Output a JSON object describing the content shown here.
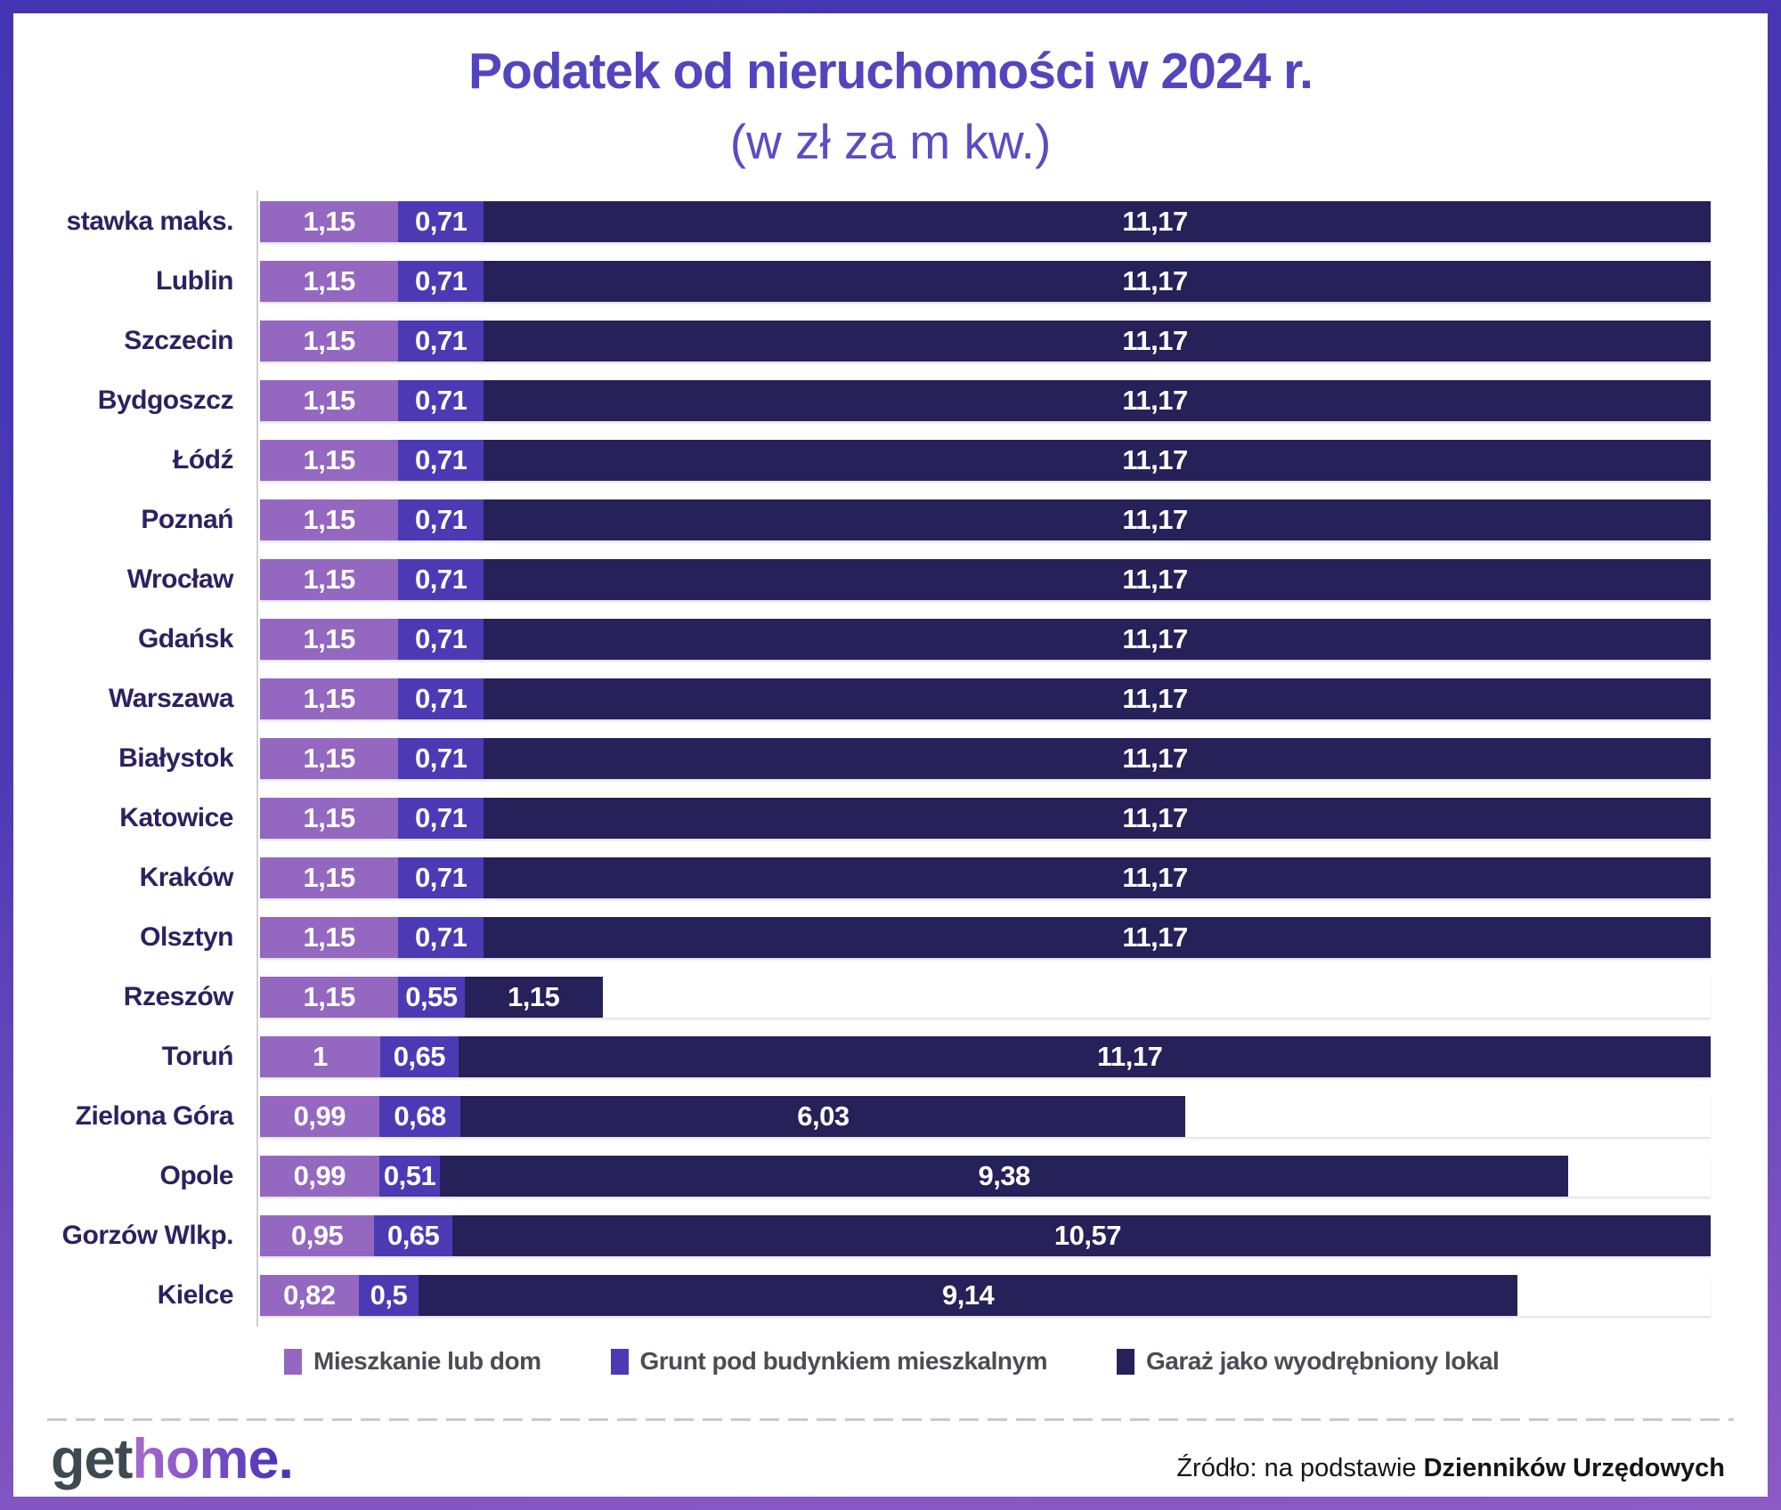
{
  "title": "Podatek od nieruchomości w 2024 r.",
  "subtitle": "(w zł za m kw.)",
  "chart_data": {
    "type": "bar",
    "orientation": "horizontal",
    "stacked": true,
    "unit": "zł za m kw.",
    "categories": [
      "stawka maks.",
      "Lublin",
      "Szczecin",
      "Bydgoszcz",
      "Łódź",
      "Poznań",
      "Wrocław",
      "Gdańsk",
      "Warszawa",
      "Białystok",
      "Katowice",
      "Kraków",
      "Olsztyn",
      "Rzeszów",
      "Toruń",
      "Zielona Góra",
      "Opole",
      "Gorzów Wlkp.",
      "Kielce"
    ],
    "series": [
      {
        "name": "Mieszkanie lub dom",
        "color": "#9468c1",
        "values": [
          1.15,
          1.15,
          1.15,
          1.15,
          1.15,
          1.15,
          1.15,
          1.15,
          1.15,
          1.15,
          1.15,
          1.15,
          1.15,
          1.15,
          1.0,
          0.99,
          0.99,
          0.95,
          0.82
        ],
        "labels": [
          "1,15",
          "1,15",
          "1,15",
          "1,15",
          "1,15",
          "1,15",
          "1,15",
          "1,15",
          "1,15",
          "1,15",
          "1,15",
          "1,15",
          "1,15",
          "1,15",
          "1",
          "0,99",
          "0,99",
          "0,95",
          "0,82"
        ]
      },
      {
        "name": "Grunt pod budynkiem mieszkalnym",
        "color": "#4c3ab5",
        "values": [
          0.71,
          0.71,
          0.71,
          0.71,
          0.71,
          0.71,
          0.71,
          0.71,
          0.71,
          0.71,
          0.71,
          0.71,
          0.71,
          0.55,
          0.65,
          0.68,
          0.51,
          0.65,
          0.5
        ],
        "labels": [
          "0,71",
          "0,71",
          "0,71",
          "0,71",
          "0,71",
          "0,71",
          "0,71",
          "0,71",
          "0,71",
          "0,71",
          "0,71",
          "0,71",
          "0,71",
          "0,55",
          "0,65",
          "0,68",
          "0,51",
          "0,65",
          "0,5"
        ]
      },
      {
        "name": "Garaż jako wyodrębniony lokal",
        "color": "#262159",
        "values": [
          11.17,
          11.17,
          11.17,
          11.17,
          11.17,
          11.17,
          11.17,
          11.17,
          11.17,
          11.17,
          11.17,
          11.17,
          11.17,
          1.15,
          11.17,
          6.03,
          9.38,
          10.57,
          9.14
        ],
        "labels": [
          "11,17",
          "11,17",
          "11,17",
          "11,17",
          "11,17",
          "11,17",
          "11,17",
          "11,17",
          "11,17",
          "11,17",
          "11,17",
          "11,17",
          "11,17",
          "1,15",
          "11,17",
          "6,03",
          "9,38",
          "10,57",
          "9,14"
        ]
      }
    ],
    "legend_position": "bottom",
    "axis_color": "#cfcfcf"
  },
  "footer": {
    "logo_get": "get",
    "logo_home": "home",
    "logo_dot": ".",
    "source_prefix": "Źródło: na podstawie ",
    "source_bold": "Dzienników Urzędowych"
  }
}
